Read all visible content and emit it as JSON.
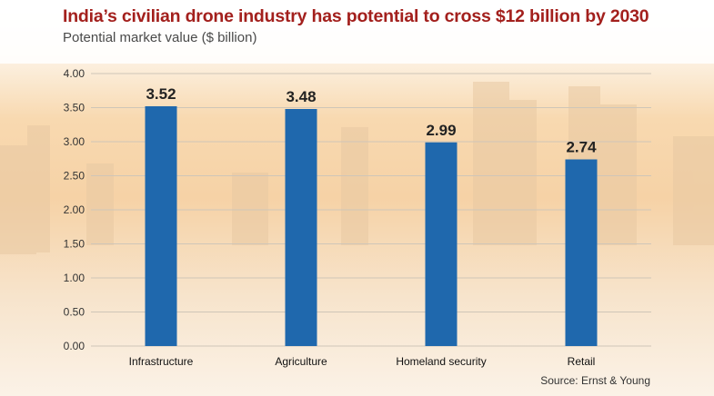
{
  "header": {
    "title": "India’s civilian drone industry has potential to cross $12 billion by 2030",
    "subtitle": "Potential market value ($ billion)"
  },
  "footer": {
    "source": "Source: Ernst & Young"
  },
  "colors": {
    "title": "#a3201d",
    "bar": "#1f68ad",
    "grid": "#cfc6b8"
  },
  "chart_data": {
    "type": "bar",
    "title": "India’s civilian drone industry has potential to cross $12 billion by 2030",
    "subtitle": "Potential market value ($ billion)",
    "categories": [
      "Infrastructure",
      "Agriculture",
      "Homeland security",
      "Retail"
    ],
    "values": [
      3.52,
      3.48,
      2.99,
      2.74
    ],
    "data_labels": [
      "3.52",
      "3.48",
      "2.99",
      "2.74"
    ],
    "ylim": [
      0,
      4
    ],
    "yticks": [
      "0.00",
      "0.50",
      "1.00",
      "1.50",
      "2.00",
      "2.50",
      "3.00",
      "3.50",
      "4.00"
    ],
    "grid": true
  }
}
